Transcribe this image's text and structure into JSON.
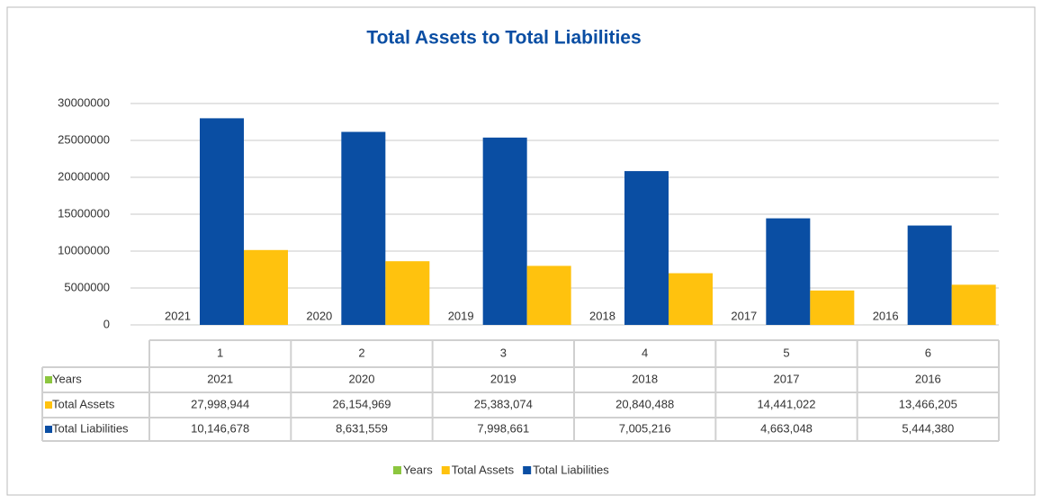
{
  "chart_data": {
    "type": "bar",
    "title": "Total Assets to Total Liabilities",
    "categories": [
      "1",
      "2",
      "3",
      "4",
      "5",
      "6"
    ],
    "series": [
      {
        "name": "Years",
        "color": "#8cc63f",
        "bar_color": "#8cc63f",
        "values": [
          2021,
          2020,
          2019,
          2018,
          2017,
          2016
        ]
      },
      {
        "name": "Total Assets",
        "color": "#ffc20e",
        "bar_color": "#0a4ea3",
        "values": [
          27998944,
          26154969,
          25383074,
          20840488,
          14441022,
          13466205
        ],
        "value_labels": [
          "27,998,944",
          "26,154,969",
          "25,383,074",
          "20,840,488",
          "14,441,022",
          "13,466,205"
        ]
      },
      {
        "name": "Total Liabilities",
        "color": "#0a4ea3",
        "bar_color": "#ffc20e",
        "values": [
          10146678,
          8631559,
          7998661,
          7005216,
          4663048,
          5444380
        ],
        "value_labels": [
          "10,146,678",
          "8,631,559",
          "7,998,661",
          "7,005,216",
          "4,663,048",
          "5,444,380"
        ]
      }
    ],
    "ylim": [
      0,
      30000000
    ],
    "yticks": [
      0,
      5000000,
      10000000,
      15000000,
      20000000,
      25000000,
      30000000
    ],
    "grid": true,
    "legend": "bottom",
    "data_table": true
  }
}
